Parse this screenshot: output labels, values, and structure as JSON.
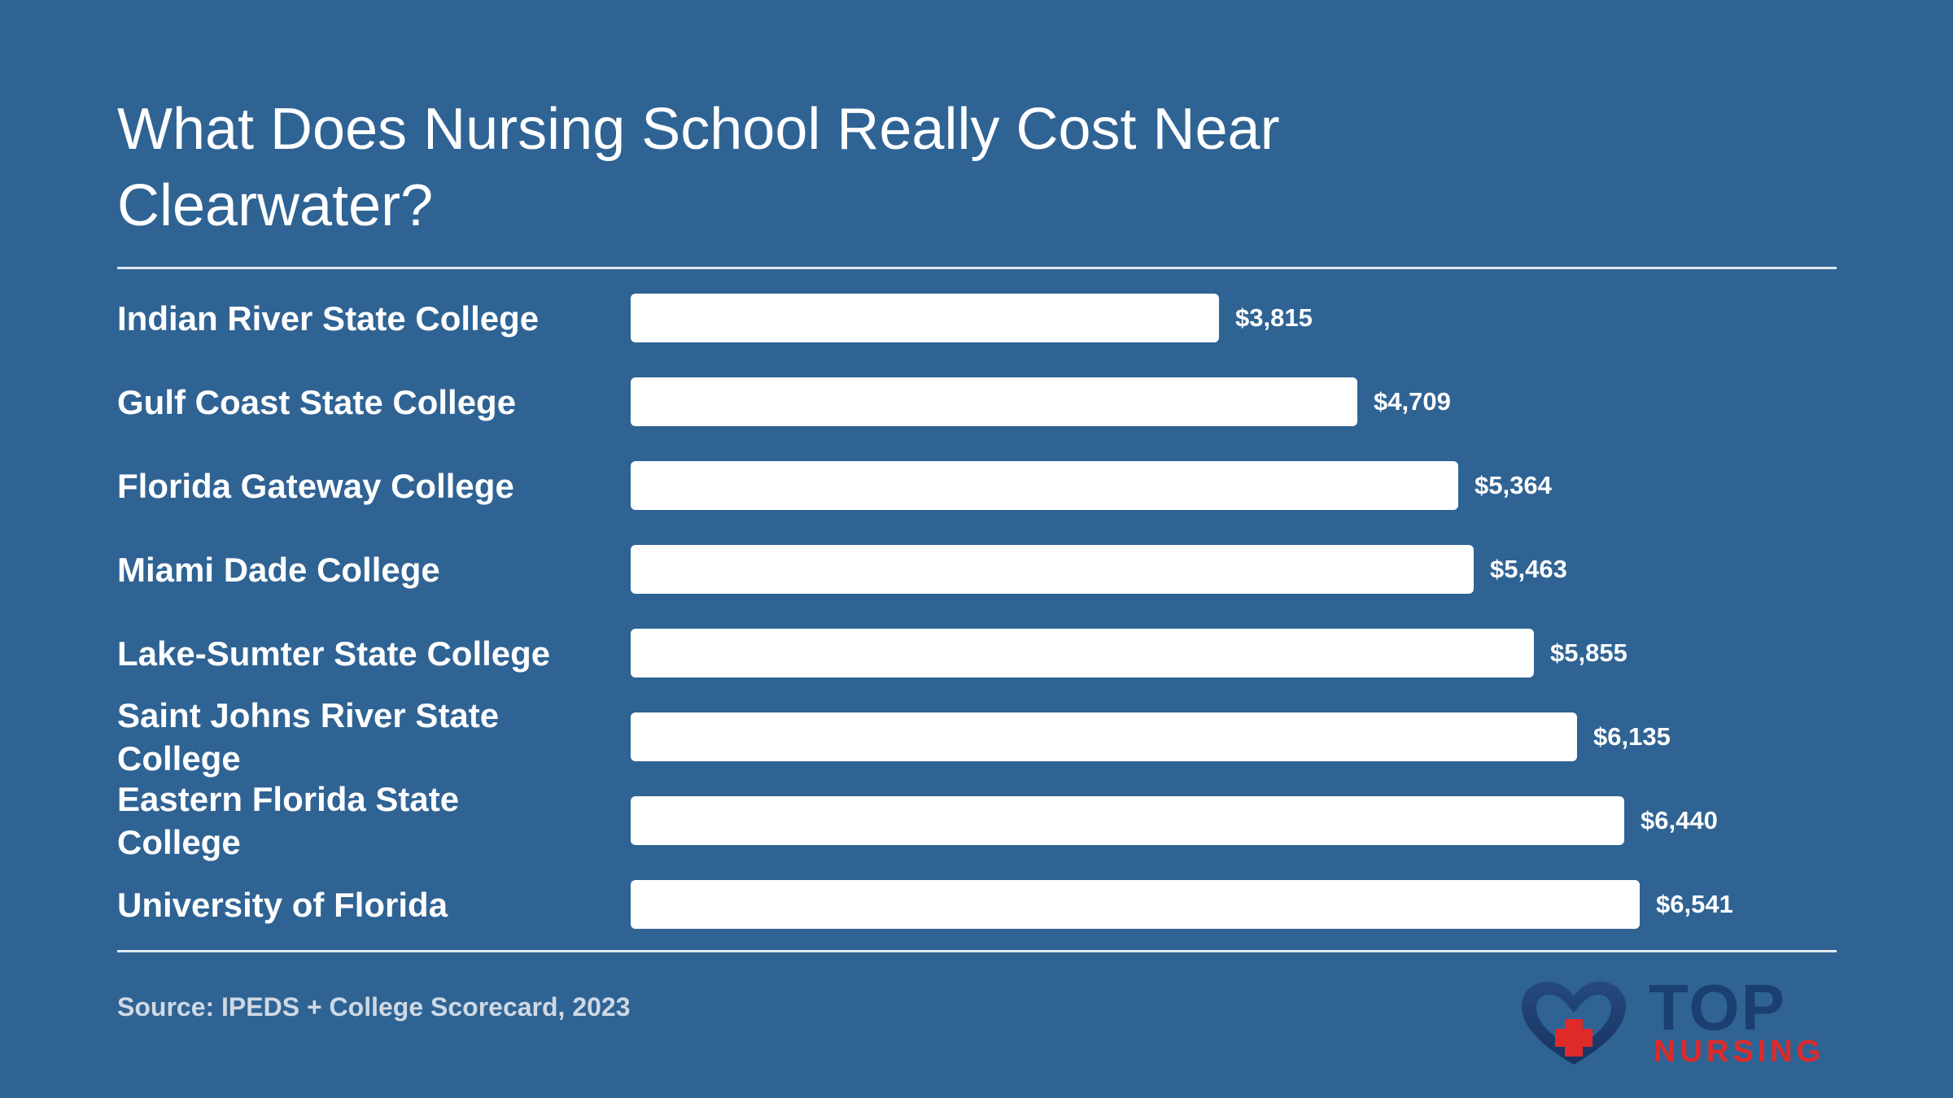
{
  "chart_data": {
    "type": "bar",
    "orientation": "horizontal",
    "title": "What Does Nursing School Really Cost Near Clearwater?",
    "categories": [
      "Indian River State College",
      "Gulf Coast State College",
      "Florida Gateway College",
      "Miami Dade College",
      "Lake-Sumter State College",
      "Saint Johns River State College",
      "Eastern Florida State College",
      "University of Florida"
    ],
    "values": [
      3815,
      4709,
      5364,
      5463,
      5855,
      6135,
      6440,
      6541
    ],
    "value_labels": [
      "$3,815",
      "$4,709",
      "$5,364",
      "$5,463",
      "$5,855",
      "$6,135",
      "$6,440",
      "$6,541"
    ],
    "xlim": [
      0,
      6541
    ],
    "grid": false,
    "bar_color": "#ffffff",
    "background_color": "#2f6394"
  },
  "source": "Source: IPEDS + College Scorecard, 2023",
  "logo": {
    "top_text": "TOP",
    "bottom_text": "NURSING",
    "icon": "heart-cross-icon",
    "colors": {
      "navy": "#1c3f72",
      "red": "#e02a2a"
    }
  }
}
